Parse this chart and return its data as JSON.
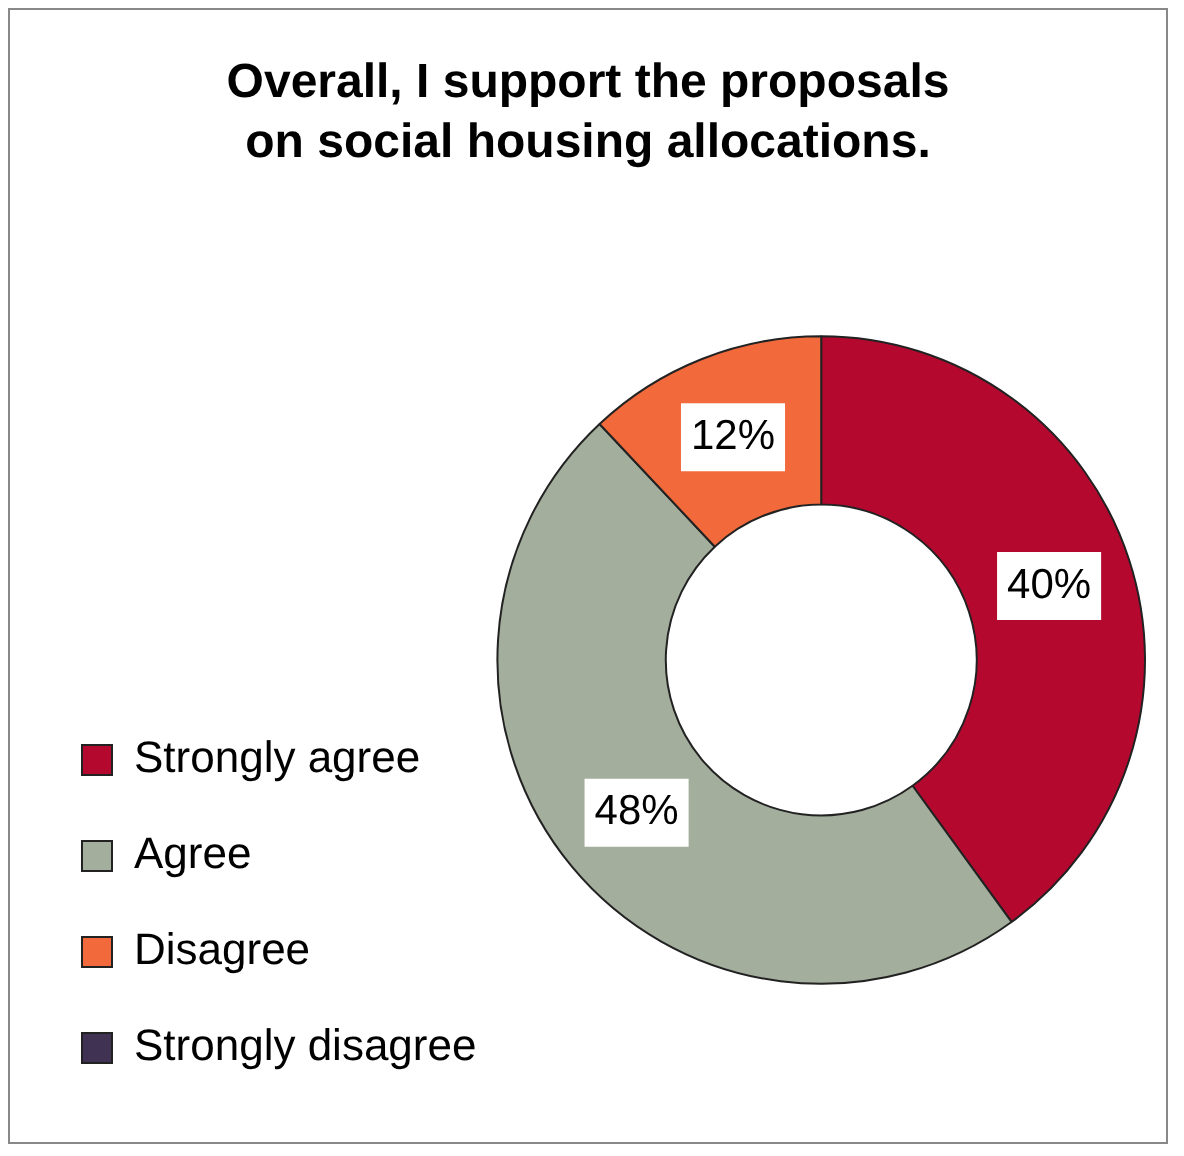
{
  "chart_data": {
    "type": "donut",
    "title": "Overall, I support the proposals\non social housing allocations.",
    "categories": [
      "Strongly agree",
      "Agree",
      "Disagree",
      "Strongly disagree"
    ],
    "values": [
      40,
      48,
      12,
      0
    ],
    "colors": [
      "#b5082f",
      "#a3ae9c",
      "#f26a3c",
      "#3f3252"
    ],
    "value_labels": [
      "40%",
      "48%",
      "12%",
      null
    ],
    "legend": "bottom left"
  }
}
